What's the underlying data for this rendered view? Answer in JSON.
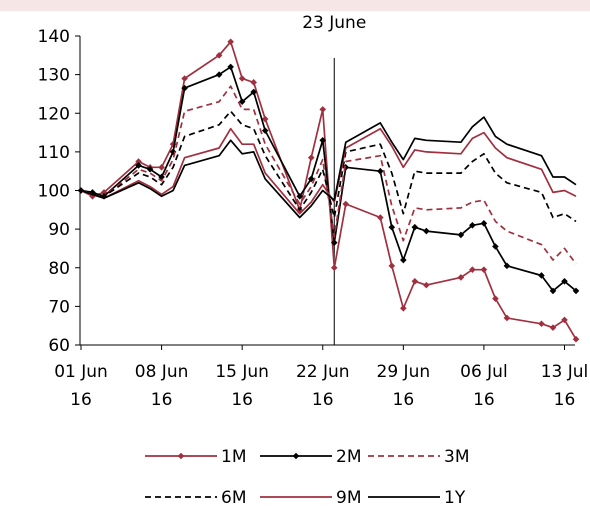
{
  "chart_data": {
    "type": "line",
    "title": "",
    "xlabel": "",
    "ylabel": "",
    "ylim": [
      60,
      140
    ],
    "y_ticks": [
      "60",
      "70",
      "80",
      "90",
      "100",
      "110",
      "120",
      "130",
      "140"
    ],
    "x_ticks": [
      {
        "date": "2016-06-01",
        "line1": "01 Jun",
        "line2": "16"
      },
      {
        "date": "2016-06-08",
        "line1": "08 Jun",
        "line2": "16"
      },
      {
        "date": "2016-06-15",
        "line1": "15 Jun",
        "line2": "16"
      },
      {
        "date": "2016-06-22",
        "line1": "22 Jun",
        "line2": "16"
      },
      {
        "date": "2016-06-29",
        "line1": "29 Jun",
        "line2": "16"
      },
      {
        "date": "2016-07-06",
        "line1": "06 Jul",
        "line2": "16"
      },
      {
        "date": "2016-07-13",
        "line1": "13 Jul",
        "line2": "16"
      }
    ],
    "annotation": {
      "label": "23 June",
      "date": "2016-06-23"
    },
    "grid": false,
    "legend_position": "bottom",
    "dates": [
      "2016-06-01",
      "2016-06-02",
      "2016-06-03",
      "2016-06-06",
      "2016-06-07",
      "2016-06-08",
      "2016-06-09",
      "2016-06-10",
      "2016-06-13",
      "2016-06-14",
      "2016-06-15",
      "2016-06-16",
      "2016-06-17",
      "2016-06-20",
      "2016-06-21",
      "2016-06-22",
      "2016-06-23",
      "2016-06-24",
      "2016-06-27",
      "2016-06-28",
      "2016-06-29",
      "2016-06-30",
      "2016-07-01",
      "2016-07-04",
      "2016-07-05",
      "2016-07-06",
      "2016-07-07",
      "2016-07-08",
      "2016-07-11",
      "2016-07-12",
      "2016-07-13",
      "2016-07-14"
    ],
    "series": [
      {
        "name": "1M",
        "color": "#a0303f",
        "dash": "solid",
        "marker": "diamond",
        "values": [
          100,
          98.5,
          99.5,
          107.5,
          106,
          106,
          112,
          129,
          135,
          138.5,
          129,
          128,
          118.5,
          95,
          108.5,
          121,
          80,
          96.5,
          93,
          80.5,
          69.5,
          76.5,
          75.5,
          77.5,
          79.5,
          79.5,
          72,
          67,
          65.5,
          64.5,
          66.5,
          61.5
        ]
      },
      {
        "name": "2M",
        "color": "#000000",
        "dash": "solid",
        "marker": "diamond",
        "values": [
          100,
          99.5,
          98.5,
          106.5,
          105.5,
          103.5,
          110,
          126.5,
          130,
          132,
          123,
          125.5,
          115.5,
          98.5,
          103,
          113,
          86.5,
          106,
          105,
          90.5,
          82,
          90.5,
          89.5,
          88.5,
          91,
          91.5,
          85.5,
          80.5,
          78,
          74,
          76.5,
          74
        ]
      },
      {
        "name": "3M",
        "color": "#a0303f",
        "dash": "dashed",
        "marker": "none",
        "values": [
          100,
          99,
          98.5,
          105.5,
          104.5,
          102.5,
          108,
          120.5,
          123,
          127,
          121,
          121,
          112,
          96.5,
          101,
          108,
          88,
          107.5,
          109,
          96,
          87,
          95.5,
          95,
          95.5,
          97,
          97.5,
          92,
          89.5,
          86,
          82,
          85,
          81
        ]
      },
      {
        "name": "6M",
        "color": "#000000",
        "dash": "dashed",
        "marker": "none",
        "values": [
          100,
          99,
          98.5,
          104.5,
          103.5,
          101.5,
          106,
          114,
          117,
          120.5,
          117,
          116,
          109,
          95,
          99.5,
          105.5,
          93,
          110,
          112,
          104.5,
          94,
          105,
          104.5,
          104.5,
          107.5,
          109.5,
          104.5,
          102,
          99.5,
          93,
          94,
          92
        ]
      },
      {
        "name": "9M",
        "color": "#a0303f",
        "dash": "solid",
        "marker": "none",
        "values": [
          100,
          99,
          98,
          102.5,
          101,
          99,
          101,
          108.5,
          111,
          116,
          112,
          112,
          104.5,
          94,
          97,
          101.5,
          97,
          111,
          116,
          111.5,
          106,
          110.5,
          110,
          109.5,
          113.5,
          115,
          111,
          108.5,
          105.5,
          99.5,
          100,
          98.5
        ]
      },
      {
        "name": "1Y",
        "color": "#000000",
        "dash": "solid",
        "marker": "none",
        "values": [
          100,
          99,
          98,
          102,
          100.5,
          98.5,
          100,
          106.5,
          109,
          113,
          109.5,
          110,
          103,
          93,
          96,
          100,
          97.5,
          112.5,
          117.5,
          112.5,
          108,
          113.5,
          113,
          112.5,
          116.5,
          119,
          114,
          112,
          109,
          103.5,
          103.5,
          101.5
        ]
      }
    ]
  }
}
